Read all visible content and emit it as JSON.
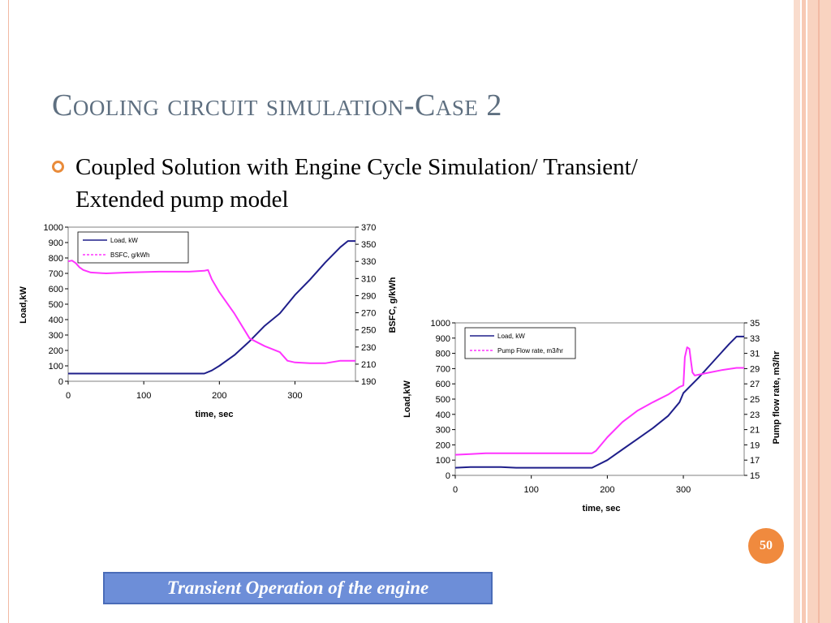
{
  "slide": {
    "title": "Cooling circuit simulation-Case 2",
    "bullet": "Coupled Solution with Engine Cycle Simulation/ Transient/ Extended pump model",
    "page_number": "50",
    "caption": "Transient Operation of the engine",
    "colors": {
      "title": "#5e6f80",
      "bullet": "#e98b3a",
      "caption_bg": "#6d8ed8",
      "stripe": "#f7c9b4"
    }
  },
  "chart_data": [
    {
      "type": "line",
      "title": "",
      "xlabel": "time, sec",
      "ylabel": "Load,kW",
      "y2label": "BSFC, g/kWh",
      "xlim": [
        0,
        380
      ],
      "xticks": [
        0,
        100,
        200,
        300
      ],
      "ylim": [
        0,
        1000
      ],
      "yticks": [
        0,
        100,
        200,
        300,
        400,
        500,
        600,
        700,
        800,
        900,
        1000
      ],
      "y2lim": [
        190,
        370
      ],
      "y2ticks": [
        190,
        210,
        230,
        250,
        270,
        290,
        310,
        330,
        350,
        370
      ],
      "legend_position": "top-left",
      "series": [
        {
          "name": "Load, kW",
          "axis": "left",
          "color": "#1f1f8a",
          "dash": "solid",
          "x": [
            0,
            50,
            100,
            150,
            180,
            190,
            200,
            220,
            240,
            260,
            280,
            300,
            320,
            340,
            360,
            370,
            380
          ],
          "y": [
            50,
            50,
            50,
            50,
            50,
            70,
            100,
            170,
            260,
            360,
            440,
            560,
            660,
            770,
            870,
            910,
            910
          ]
        },
        {
          "name": "BSFC, g/kWh",
          "axis": "right",
          "color": "#ff33ff",
          "dash": "dashed",
          "x": [
            0,
            5,
            10,
            15,
            20,
            30,
            50,
            80,
            120,
            160,
            180,
            185,
            190,
            200,
            220,
            240,
            260,
            280,
            290,
            300,
            320,
            340,
            360,
            380
          ],
          "y": [
            330,
            331,
            328,
            323,
            320,
            317,
            316,
            317,
            318,
            318,
            319,
            320,
            309,
            294,
            269,
            240,
            231,
            224,
            214,
            212,
            211,
            211,
            214,
            214
          ]
        }
      ]
    },
    {
      "type": "line",
      "title": "",
      "xlabel": "time, sec",
      "ylabel": "Load,kW",
      "y2label": "Pump flow rate, m3/hr",
      "xlim": [
        0,
        380
      ],
      "xticks": [
        0,
        100,
        200,
        300
      ],
      "ylim": [
        0,
        1000
      ],
      "yticks": [
        0,
        100,
        200,
        300,
        400,
        500,
        600,
        700,
        800,
        900,
        1000
      ],
      "y2lim": [
        15,
        35
      ],
      "y2ticks": [
        15,
        17,
        19,
        21,
        23,
        25,
        27,
        29,
        31,
        33,
        35
      ],
      "legend_position": "top-left",
      "series": [
        {
          "name": "Load, kW",
          "axis": "left",
          "color": "#1f1f8a",
          "dash": "solid",
          "x": [
            0,
            20,
            40,
            60,
            80,
            120,
            160,
            180,
            200,
            220,
            240,
            260,
            280,
            295,
            300,
            320,
            340,
            360,
            370,
            380
          ],
          "y": [
            50,
            55,
            55,
            55,
            50,
            50,
            50,
            50,
            100,
            170,
            240,
            310,
            390,
            480,
            540,
            640,
            750,
            860,
            910,
            910
          ]
        },
        {
          "name": "Pump Flow rate, m3/hr",
          "axis": "right",
          "color": "#ff33ff",
          "dash": "dashed",
          "x": [
            0,
            20,
            40,
            80,
            120,
            160,
            180,
            185,
            200,
            220,
            240,
            260,
            280,
            295,
            300,
            302,
            305,
            308,
            310,
            312,
            315,
            330,
            350,
            370,
            380
          ],
          "y": [
            17.7,
            17.8,
            17.9,
            17.9,
            17.9,
            17.9,
            17.9,
            18.2,
            20.0,
            22.0,
            23.5,
            24.6,
            25.6,
            26.6,
            26.8,
            30.5,
            31.8,
            31.6,
            30.0,
            28.5,
            28.1,
            28.4,
            28.8,
            29.1,
            29.1
          ]
        }
      ]
    }
  ]
}
